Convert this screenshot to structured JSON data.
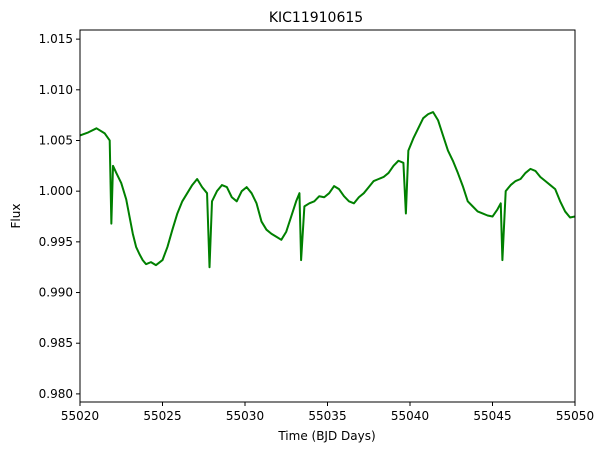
{
  "chart_data": {
    "type": "line",
    "title": "KIC11910615",
    "xlabel": "Time (BJD Days)",
    "ylabel": "Flux",
    "xlim": [
      55020,
      55050
    ],
    "ylim": [
      0.9792,
      1.0159
    ],
    "xticks": [
      55020,
      55025,
      55030,
      55035,
      55040,
      55045,
      55050
    ],
    "xtick_labels": [
      "55020",
      "55025",
      "55030",
      "55035",
      "55040",
      "55045",
      "55050"
    ],
    "yticks": [
      0.98,
      0.985,
      0.99,
      0.995,
      1.0,
      1.005,
      1.01,
      1.015
    ],
    "ytick_labels": [
      "0.980",
      "0.985",
      "0.990",
      "0.995",
      "1.000",
      "1.005",
      "1.010",
      "1.015"
    ],
    "grid": false,
    "series": [
      {
        "color": "#008000",
        "x": [
          55020.0,
          55020.5,
          55021.0,
          55021.5,
          55021.8,
          55021.9,
          55022.0,
          55022.2,
          55022.5,
          55022.8,
          55023.0,
          55023.2,
          55023.4,
          55023.6,
          55023.8,
          55024.0,
          55024.3,
          55024.6,
          55025.0,
          55025.3,
          55025.6,
          55025.9,
          55026.2,
          55026.5,
          55026.8,
          55027.1,
          55027.4,
          55027.7,
          55027.85,
          55028.0,
          55028.3,
          55028.6,
          55028.9,
          55029.2,
          55029.5,
          55029.8,
          55030.1,
          55030.4,
          55030.7,
          55031.0,
          55031.3,
          55031.6,
          55031.9,
          55032.2,
          55032.5,
          55032.8,
          55033.1,
          55033.3,
          55033.4,
          55033.6,
          55033.9,
          55034.2,
          55034.5,
          55034.8,
          55035.1,
          55035.4,
          55035.7,
          55036.0,
          55036.3,
          55036.6,
          55036.9,
          55037.2,
          55037.5,
          55037.8,
          55038.1,
          55038.4,
          55038.7,
          55039.0,
          55039.3,
          55039.6,
          55039.75,
          55039.9,
          55040.2,
          55040.5,
          55040.8,
          55041.1,
          55041.4,
          55041.7,
          55042.0,
          55042.3,
          55042.6,
          55042.9,
          55043.2,
          55043.5,
          55043.8,
          55044.1,
          55044.4,
          55044.7,
          55045.0,
          55045.3,
          55045.5,
          55045.6,
          55045.8,
          55046.1,
          55046.4,
          55046.7,
          55047.0,
          55047.3,
          55047.6,
          55047.9,
          55048.2,
          55048.5,
          55048.8,
          55049.1,
          55049.4,
          55049.7,
          55050.0
        ],
        "y": [
          1.0055,
          1.0058,
          1.0062,
          1.0057,
          1.005,
          0.9968,
          1.0025,
          1.0018,
          1.0008,
          0.9992,
          0.9975,
          0.9958,
          0.9945,
          0.9938,
          0.9932,
          0.9928,
          0.993,
          0.9927,
          0.9932,
          0.9945,
          0.9962,
          0.9978,
          0.999,
          0.9998,
          1.0006,
          1.0012,
          1.0004,
          0.9998,
          0.9925,
          0.999,
          1.0,
          1.0006,
          1.0004,
          0.9994,
          0.999,
          1.0,
          1.0004,
          0.9998,
          0.9988,
          0.997,
          0.9962,
          0.9958,
          0.9955,
          0.9952,
          0.996,
          0.9975,
          0.999,
          0.9998,
          0.9932,
          0.9985,
          0.9988,
          0.999,
          0.9995,
          0.9994,
          0.9998,
          1.0005,
          1.0002,
          0.9995,
          0.999,
          0.9988,
          0.9994,
          0.9998,
          1.0004,
          1.001,
          1.0012,
          1.0014,
          1.0018,
          1.0025,
          1.003,
          1.0028,
          0.9978,
          1.004,
          1.0052,
          1.0062,
          1.0072,
          1.0076,
          1.0078,
          1.007,
          1.0055,
          1.004,
          1.003,
          1.0018,
          1.0005,
          0.999,
          0.9985,
          0.998,
          0.9978,
          0.9976,
          0.9975,
          0.9982,
          0.9988,
          0.9932,
          1.0,
          1.0006,
          1.001,
          1.0012,
          1.0018,
          1.0022,
          1.002,
          1.0014,
          1.001,
          1.0006,
          1.0002,
          0.999,
          0.998,
          0.9974,
          0.9975
        ]
      }
    ]
  }
}
